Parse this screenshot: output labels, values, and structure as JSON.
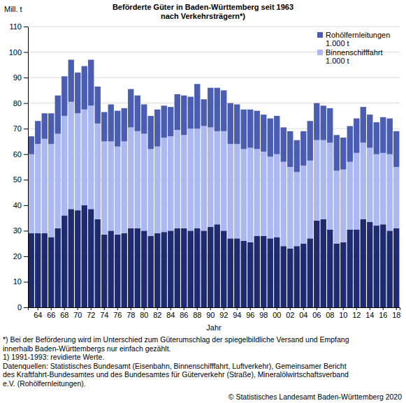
{
  "chart_data": {
    "type": "bar",
    "stacked": true,
    "title": "Beförderte Güter in Baden-Württemberg seit 1963",
    "subtitle": "nach Verkehrsträgern*)",
    "y_label": "Mill. t",
    "x_label": "Jahr",
    "categories": [
      null,
      "64",
      null,
      "66",
      null,
      "68",
      null,
      "70",
      null,
      "72",
      null,
      "74",
      null,
      "76",
      null,
      "78",
      null,
      "80",
      null,
      "82",
      null,
      "84",
      null,
      "86",
      null,
      "88",
      null,
      "90",
      null,
      "92",
      null,
      "94",
      null,
      "96",
      null,
      "98",
      null,
      "00",
      null,
      "02",
      null,
      "04",
      null,
      "06",
      null,
      "08",
      null,
      "10",
      null,
      "12",
      null,
      "14",
      null,
      "16",
      null,
      "18"
    ],
    "series": [
      {
        "name": null,
        "color": "#1e2b70",
        "values": [
          29,
          29,
          29,
          27.5,
          31,
          36,
          38.5,
          38,
          40,
          38.5,
          34.5,
          28.5,
          30,
          28.5,
          29,
          31,
          31,
          30,
          28,
          29,
          29.5,
          30,
          31,
          31,
          30,
          31,
          30,
          31.5,
          32.5,
          30,
          27,
          27,
          26,
          25.5,
          28,
          28,
          27,
          27.5,
          24,
          23,
          24,
          25,
          27,
          34,
          34.5,
          30.5,
          25,
          25.5,
          30.5,
          30.5,
          34.5,
          33.5,
          32,
          32.5,
          30,
          31
        ]
      },
      {
        "name": "Binnenschifffahrt 1.000 t",
        "color": "#abb9f0",
        "values": [
          31,
          35,
          37,
          36.5,
          37,
          39,
          42,
          38,
          37.5,
          40.5,
          37.5,
          36.5,
          35,
          34.5,
          36,
          39.5,
          38,
          38,
          34,
          34,
          37,
          37,
          38.5,
          36.5,
          40,
          39,
          41,
          39,
          36.5,
          39,
          37,
          37,
          36,
          37,
          34,
          33,
          32,
          32.5,
          33,
          32,
          29,
          30.5,
          30.5,
          31.5,
          31,
          34,
          28.5,
          28.5,
          26.5,
          30,
          30,
          29,
          28,
          28,
          30,
          24
        ]
      },
      {
        "name": "Rohölfernleitungen 1.000 t",
        "color": "#4a5db0",
        "values": [
          7,
          9,
          10,
          12,
          15,
          15.5,
          16.5,
          16,
          17,
          18,
          14.5,
          11.5,
          14.5,
          14,
          13,
          15,
          14,
          11.5,
          13,
          14.5,
          12.5,
          11.5,
          14,
          15.5,
          12.5,
          17.5,
          10.5,
          15.5,
          17,
          16,
          16,
          15.5,
          15.5,
          15,
          15,
          14.5,
          15,
          15,
          13.5,
          14,
          12.5,
          13.5,
          15.5,
          14.5,
          13.5,
          13.5,
          14,
          12.5,
          14,
          13.5,
          14,
          13,
          12.5,
          14,
          14,
          14
        ]
      }
    ],
    "ylim": [
      0,
      110
    ],
    "yticks": [
      0,
      10,
      20,
      30,
      40,
      50,
      60,
      70,
      80,
      90,
      100,
      110
    ],
    "grid": true,
    "legend": "upper right",
    "notes": [
      "*) Bei der Beförderung wird im Unterschied zum Güterumschlag der spiegelbildliche Versand und Empfang",
      "innerhalb Baden-Württembergs nur einfach gezählt.",
      "1) 1991-1993: revidierte Werte.",
      "Datenquellen: Statistisches Bundesamt (Eisenbahn, Binnenschifffahrt, Luftverkehr), Gemeinsamer Bericht",
      "des Kraftfahrt-Bundesamtes und des Bundesamtes für Güterverkehr (Straße), Mineralölwirtschaftsverband",
      "e.V. (Rohölfernleitungen)."
    ],
    "source": "© Statistisches Landesamt Baden-Württemberg 2020"
  }
}
